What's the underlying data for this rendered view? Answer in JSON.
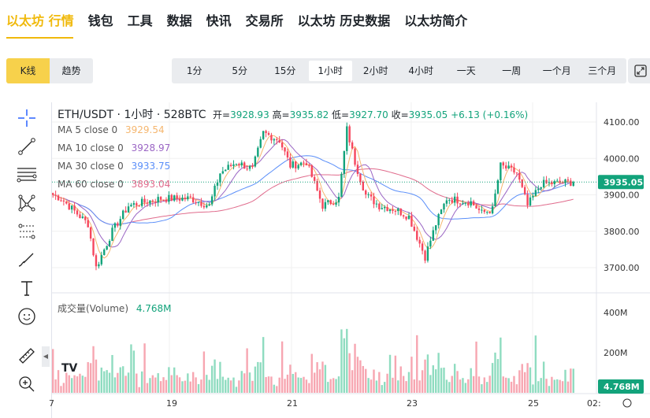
{
  "nav": {
    "items": [
      "以太坊 行情",
      "钱包",
      "工具",
      "数据",
      "快讯",
      "交易所",
      "以太坊 历史数据",
      "以太坊简介"
    ],
    "active": 0
  },
  "chart_type_tabs": [
    "K线",
    "趋势"
  ],
  "intervals": [
    "1分",
    "5分",
    "15分",
    "1小时",
    "2小时",
    "4小时",
    "一天",
    "一周",
    "一个月",
    "三个月"
  ],
  "active_interval": 3,
  "header": {
    "symbol": "ETH/USDT · 1小时 · 528BTC",
    "open_label": "开=",
    "open": "3928.93",
    "high_label": "高=",
    "high": "3935.82",
    "low_label": "低=",
    "low": "3927.70",
    "close_label": "收=",
    "close": "3935.05",
    "change": "+6.13 (+0.16%)"
  },
  "ma": [
    {
      "label": "MA 5 close 0",
      "value": "3929.54",
      "color": "#f5b66e"
    },
    {
      "label": "MA 10 close 0",
      "value": "3928.97",
      "color": "#9a65c4"
    },
    {
      "label": "MA 30 close 0",
      "value": "3933.75",
      "color": "#5b8ff9"
    },
    {
      "label": "MA 60 close 0",
      "value": "3893.04",
      "color": "#e06b8c"
    }
  ],
  "volume": {
    "label": "成交量(Volume)",
    "value": "4.768M"
  },
  "price_axis": [
    "4100.00",
    "4000.00",
    "3900.00",
    "3800.00",
    "3700.00"
  ],
  "current_price": "3935.05",
  "volume_axis": [
    "400M",
    "200M"
  ],
  "current_volume": "4.768M",
  "time_axis": [
    "7",
    "19",
    "21",
    "23",
    "25",
    "02:"
  ],
  "colors": {
    "up": "#0ecb81",
    "down": "#f6465d",
    "up_dark": "#12a37b",
    "accent": "#f0b90b"
  },
  "chart_data": {
    "type": "candlestick",
    "ylim": [
      3660,
      4130
    ],
    "volume_ylim": [
      0,
      420
    ],
    "close_keypoints": [
      3900,
      3890,
      3820,
      3700,
      3800,
      3870,
      3890,
      3890,
      3870,
      3960,
      3990,
      3970,
      4070,
      4050,
      3980,
      3990,
      3870,
      3890,
      4080,
      3990,
      3900,
      3870,
      3860,
      3840,
      3730,
      3820,
      3890,
      3880,
      3850,
      3860,
      3980,
      3960,
      3870,
      3930,
      3935
    ],
    "keypoint_positions": [
      0,
      3,
      13,
      16,
      22,
      28,
      40,
      51,
      58,
      62,
      68,
      74,
      78,
      84,
      88,
      94,
      100,
      106,
      109,
      112,
      116,
      121,
      127,
      132,
      138,
      142,
      146,
      155,
      159,
      163,
      166,
      172,
      176,
      181,
      193
    ]
  }
}
